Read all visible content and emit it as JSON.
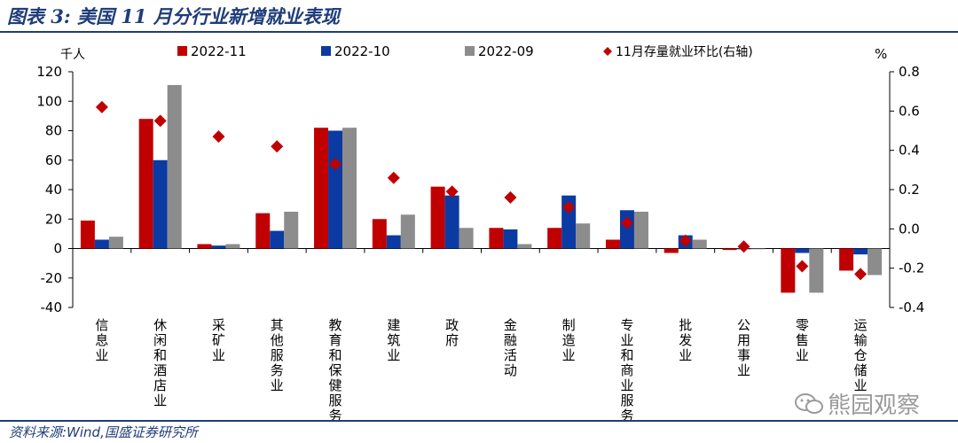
{
  "figure": {
    "title": "图表 3:  美国 11 月分行业新增就业表现",
    "source": "资料来源:Wind,国盛证券研究所",
    "watermark": "熊园观察"
  },
  "chart_data": {
    "type": "bar",
    "left_unit": "千人",
    "right_unit": "%",
    "categories": [
      "信息业",
      "休闲和酒店业",
      "采矿业",
      "其他服务业",
      "教育和保健服务",
      "建筑业",
      "政府",
      "金融活动",
      "制造业",
      "专业和商业服务",
      "批发业",
      "公用事业",
      "零售业",
      "运输仓储业"
    ],
    "series": [
      {
        "name": "2022-11",
        "color": "#c00000",
        "axis": "left",
        "values": [
          19,
          88,
          3,
          24,
          82,
          20,
          42,
          14,
          14,
          6,
          -3,
          -1,
          -30,
          -15
        ]
      },
      {
        "name": "2022-10",
        "color": "#0b3aa3",
        "axis": "left",
        "values": [
          6,
          60,
          2,
          12,
          80,
          9,
          36,
          13,
          36,
          26,
          9,
          0,
          -3,
          -4
        ]
      },
      {
        "name": "2022-09",
        "color": "#8c8c8c",
        "axis": "left",
        "values": [
          8,
          111,
          3,
          25,
          82,
          23,
          14,
          3,
          17,
          25,
          6,
          0,
          -30,
          -18
        ]
      },
      {
        "name": "11月存量就业环比(右轴)",
        "color": "#c00000",
        "axis": "right",
        "marker": "diamond",
        "values": [
          0.62,
          0.55,
          0.47,
          0.42,
          0.33,
          0.26,
          0.19,
          0.16,
          0.11,
          0.03,
          -0.06,
          -0.09,
          -0.19,
          -0.23
        ]
      }
    ],
    "ylim_left": [
      -40,
      120
    ],
    "yticks_left": [
      "120",
      "100",
      "80",
      "60",
      "40",
      "20",
      "0",
      "-20",
      "-40"
    ],
    "ylim_right": [
      -0.4,
      0.8
    ],
    "yticks_right": [
      "0.8",
      "0.6",
      "0.4",
      "0.2",
      "0.0",
      "-0.2",
      "-0.4"
    ],
    "legend_position": "top",
    "grid": false
  }
}
